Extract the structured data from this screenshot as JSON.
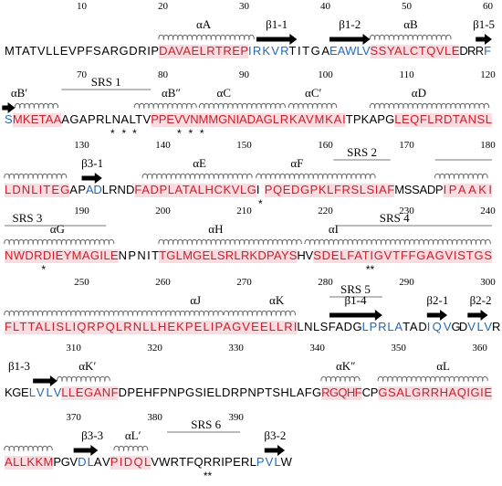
{
  "colors": {
    "helix": "#c8202c",
    "strand": "#2468b4",
    "coil": "#000000",
    "highlight": "#fadbe0"
  },
  "rows": [
    {
      "numbers": [
        10,
        20,
        30,
        40,
        50,
        60
      ],
      "labels": [
        "αA",
        "β1-1",
        "β1-2",
        "αB",
        "β1-5"
      ],
      "segments": [
        {
          "text": "MTATVLLEVPFSARGDRIP",
          "type": "coil"
        },
        {
          "text": "DAVAELRTREP",
          "type": "helix"
        },
        {
          "text": "IRKVR",
          "type": "strand"
        },
        {
          "text": "TITGA",
          "type": "coil"
        },
        {
          "text": "EAWLV",
          "type": "strand"
        },
        {
          "text": "SSYALCTQVLE",
          "type": "helix"
        },
        {
          "text": "DRR",
          "type": "coil"
        },
        {
          "text": "F",
          "type": "strand"
        }
      ],
      "stars": []
    },
    {
      "numbers": [
        70,
        80,
        90,
        100,
        110,
        120
      ],
      "labels": [
        "αB′",
        "SRS 1",
        "αB″",
        "αC",
        "αC′",
        "αD"
      ],
      "segments": [
        {
          "text": "S",
          "type": "strand"
        },
        {
          "text": "MKETAA",
          "type": "helix"
        },
        {
          "text": "AGAPRLNALTV",
          "type": "coil"
        },
        {
          "text": "PPEVVNMMGNIADAG",
          "type": "helix"
        },
        {
          "text": "LRKAVMKAI",
          "type": "helix"
        },
        {
          "text": "TPKAPG",
          "type": "coil"
        },
        {
          "text": "LEQFLRDTANSL",
          "type": "helix"
        }
      ],
      "stars": [
        "*",
        "*",
        "*",
        "*",
        "*",
        "*"
      ]
    },
    {
      "numbers": [
        130,
        140,
        150,
        160,
        170,
        180
      ],
      "labels": [
        "β3-1",
        "αE",
        "αF",
        "SRS 2"
      ],
      "segments": [
        {
          "text": "LDNLITEG",
          "type": "helix"
        },
        {
          "text": "AP",
          "type": "coil"
        },
        {
          "text": "AD",
          "type": "strand"
        },
        {
          "text": "LRND",
          "type": "coil"
        },
        {
          "text": "FADPLATALHCKVLG",
          "type": "helix"
        },
        {
          "text": "I",
          "type": "coil"
        },
        {
          "text": "PQEDGPKLFRSLSIAF",
          "type": "helix"
        },
        {
          "text": "MSSADP",
          "type": "coil"
        },
        {
          "text": "IPAAKI",
          "type": "helix"
        }
      ],
      "stars": [
        "*"
      ]
    },
    {
      "numbers": [
        190,
        200,
        210,
        220,
        230,
        240
      ],
      "labels": [
        "SRS 3",
        "αG",
        "αH",
        "αI",
        "SRS 4"
      ],
      "segments": [
        {
          "text": "NWDRDIEYMAGILE",
          "type": "helix"
        },
        {
          "text": "NPNIT",
          "type": "coil"
        },
        {
          "text": "TGLMGELSRLRKDPAYS",
          "type": "helix"
        },
        {
          "text": "HV",
          "type": "coil"
        },
        {
          "text": "SDELFATIGVTFFGAGVISTGS",
          "type": "helix"
        }
      ],
      "stars": [
        "*",
        "**"
      ]
    },
    {
      "numbers": [
        250,
        260,
        270,
        280,
        290,
        300
      ],
      "labels": [
        "αJ",
        "αK",
        "SRS 5",
        "β1-4",
        "β2-1",
        "β2-2"
      ],
      "segments": [
        {
          "text": "FLTTALISLIQRPQLRNLLHEKPELIPAGVEELLRI",
          "type": "helix"
        },
        {
          "text": "LNLSFADG",
          "type": "coil"
        },
        {
          "text": "LPRLA",
          "type": "strand"
        },
        {
          "text": "TAD",
          "type": "coil"
        },
        {
          "text": "IQV",
          "type": "strand"
        },
        {
          "text": "GD",
          "type": "coil"
        },
        {
          "text": "VLV",
          "type": "strand"
        },
        {
          "text": "R",
          "type": "coil"
        }
      ],
      "stars": []
    },
    {
      "numbers": [
        310,
        320,
        330,
        340,
        350,
        360
      ],
      "labels": [
        "β1-3",
        "αK′",
        "αK″",
        "αL"
      ],
      "segments": [
        {
          "text": "KGE",
          "type": "coil"
        },
        {
          "text": "LVLV",
          "type": "strand"
        },
        {
          "text": "LLEGANF",
          "type": "helix"
        },
        {
          "text": "DPEHFPNPGSIELDRPNPTSHLAFG",
          "type": "coil"
        },
        {
          "text": "RGQHF",
          "type": "helix"
        },
        {
          "text": "CP",
          "type": "coil"
        },
        {
          "text": "GSALGRRHAQIGIE",
          "type": "helix"
        }
      ],
      "stars": []
    },
    {
      "numbers": [
        370,
        380,
        390
      ],
      "labels": [
        "β3-3",
        "αL′",
        "SRS 6",
        "β3-2"
      ],
      "segments": [
        {
          "text": "ALLKKM",
          "type": "helix"
        },
        {
          "text": "PGV",
          "type": "coil"
        },
        {
          "text": "DL",
          "type": "strand"
        },
        {
          "text": "AV",
          "type": "coil"
        },
        {
          "text": "PIDQL",
          "type": "helix"
        },
        {
          "text": "VWRTFQRRIPERL",
          "type": "coil"
        },
        {
          "text": "PVL",
          "type": "strand"
        },
        {
          "text": "W",
          "type": "coil"
        }
      ],
      "stars": [
        "**"
      ]
    }
  ]
}
